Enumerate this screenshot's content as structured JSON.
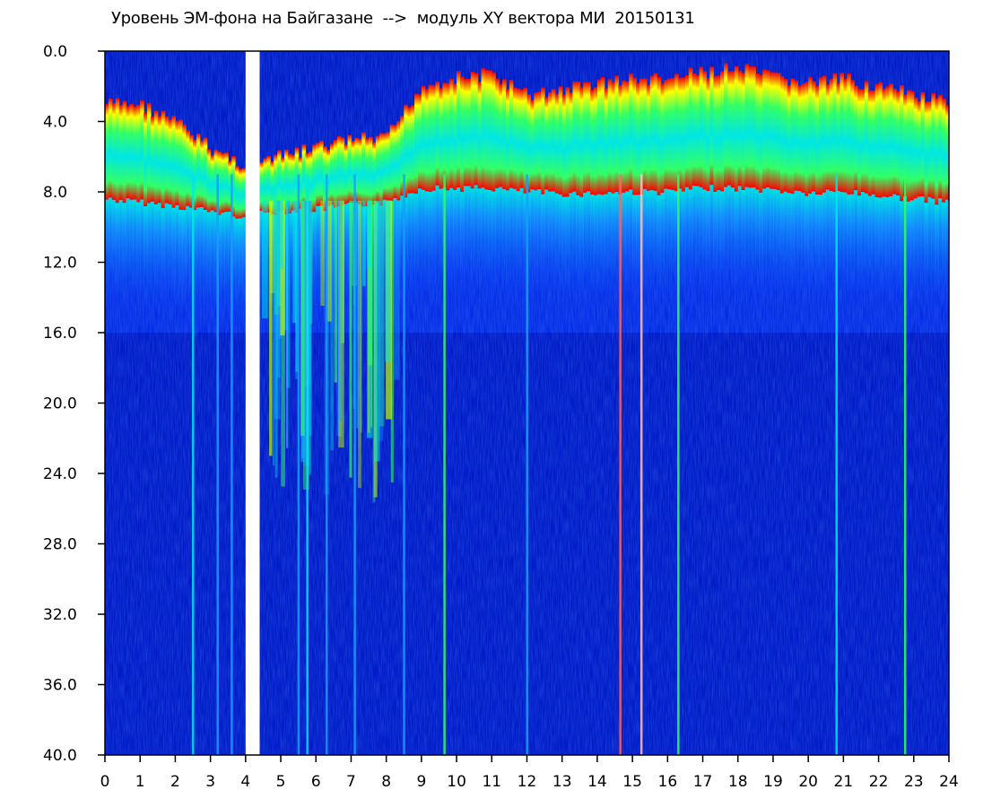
{
  "chart_data": {
    "type": "heatmap",
    "title": "Уровень ЭМ-фона на Байгазане  -->  модуль XY вектора МИ  20150131",
    "x_range": [
      0,
      24
    ],
    "y_range": [
      0.0,
      40.0
    ],
    "y_inverted": true,
    "x_ticks": [
      "0",
      "1",
      "2",
      "3",
      "4",
      "5",
      "6",
      "7",
      "8",
      "9",
      "10",
      "11",
      "12",
      "13",
      "14",
      "15",
      "16",
      "17",
      "18",
      "19",
      "20",
      "21",
      "22",
      "23",
      "24"
    ],
    "y_ticks": [
      "0.0",
      "4.0",
      "8.0",
      "12.0",
      "16.0",
      "20.0",
      "24.0",
      "28.0",
      "32.0",
      "36.0",
      "40.0"
    ],
    "grid": false,
    "colormap": [
      "#0000c8",
      "#0a3cff",
      "#14a0ff",
      "#00e6e6",
      "#32ff64",
      "#c8ff00",
      "#ffff00",
      "#ff9600",
      "#ff0000"
    ],
    "background_color": "#0018c8",
    "gap_x_range": [
      4.0,
      4.4
    ],
    "band_profile": [
      {
        "x": 0.0,
        "top_y": 3.0,
        "red_y": 7.8
      },
      {
        "x": 1.0,
        "top_y": 3.0,
        "red_y": 8.0
      },
      {
        "x": 2.0,
        "top_y": 4.0,
        "red_y": 8.2
      },
      {
        "x": 3.0,
        "top_y": 5.5,
        "red_y": 8.5
      },
      {
        "x": 4.0,
        "top_y": 6.5,
        "red_y": 8.8
      },
      {
        "x": 5.0,
        "top_y": 6.0,
        "red_y": 8.5
      },
      {
        "x": 6.0,
        "top_y": 5.5,
        "red_y": 8.4
      },
      {
        "x": 7.0,
        "top_y": 5.0,
        "red_y": 8.2
      },
      {
        "x": 8.0,
        "top_y": 5.0,
        "red_y": 8.0
      },
      {
        "x": 9.0,
        "top_y": 2.0,
        "red_y": 7.2
      },
      {
        "x": 10.0,
        "top_y": 1.5,
        "red_y": 7.2
      },
      {
        "x": 11.0,
        "top_y": 1.3,
        "red_y": 7.2
      },
      {
        "x": 12.0,
        "top_y": 2.5,
        "red_y": 7.4
      },
      {
        "x": 13.0,
        "top_y": 2.2,
        "red_y": 7.5
      },
      {
        "x": 14.0,
        "top_y": 1.8,
        "red_y": 7.5
      },
      {
        "x": 15.0,
        "top_y": 1.6,
        "red_y": 7.4
      },
      {
        "x": 16.0,
        "top_y": 1.6,
        "red_y": 7.4
      },
      {
        "x": 17.0,
        "top_y": 1.2,
        "red_y": 7.2
      },
      {
        "x": 18.0,
        "top_y": 1.0,
        "red_y": 7.2
      },
      {
        "x": 19.0,
        "top_y": 1.5,
        "red_y": 7.3
      },
      {
        "x": 20.0,
        "top_y": 1.8,
        "red_y": 7.5
      },
      {
        "x": 21.0,
        "top_y": 1.6,
        "red_y": 7.4
      },
      {
        "x": 22.0,
        "top_y": 2.0,
        "red_y": 7.6
      },
      {
        "x": 23.0,
        "top_y": 2.5,
        "red_y": 7.8
      },
      {
        "x": 24.0,
        "top_y": 3.0,
        "red_y": 8.0
      }
    ],
    "vertical_streaks": [
      {
        "x": 2.5,
        "color": "#00e6e6"
      },
      {
        "x": 3.2,
        "color": "#14a0ff"
      },
      {
        "x": 3.6,
        "color": "#14a0ff"
      },
      {
        "x": 5.5,
        "color": "#14a0ff"
      },
      {
        "x": 5.75,
        "color": "#00e6e6"
      },
      {
        "x": 6.3,
        "color": "#14a0ff"
      },
      {
        "x": 7.1,
        "color": "#14a0ff"
      },
      {
        "x": 8.5,
        "color": "#14a0ff"
      },
      {
        "x": 9.65,
        "color": "#32ff64"
      },
      {
        "x": 12.0,
        "color": "#14a0ff"
      },
      {
        "x": 14.65,
        "color": "#ff6464"
      },
      {
        "x": 15.25,
        "color": "#ffc0c0"
      },
      {
        "x": 16.3,
        "color": "#32ff64"
      },
      {
        "x": 20.8,
        "color": "#00e6e6"
      },
      {
        "x": 22.75,
        "color": "#32ff64"
      }
    ]
  }
}
